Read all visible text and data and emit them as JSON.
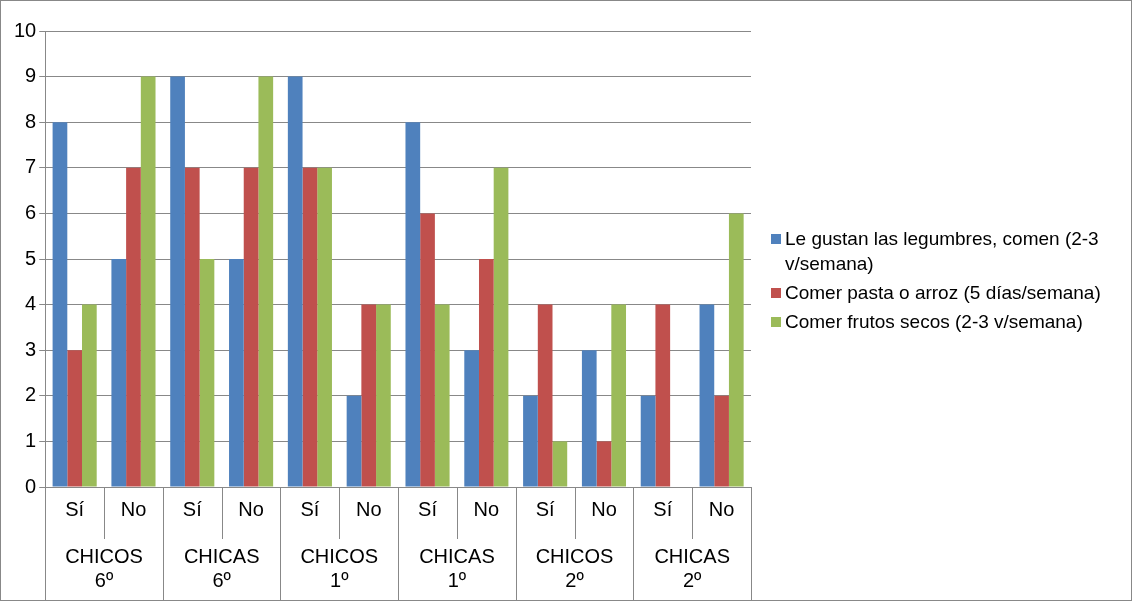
{
  "chart_data": {
    "type": "bar",
    "categories": [
      "Sí",
      "No",
      "Sí",
      "No",
      "Sí",
      "No",
      "Sí",
      "No",
      "Sí",
      "No",
      "Sí",
      "No"
    ],
    "annotations": [
      "CHICOS\n6º",
      "CHICAS\n6º",
      "CHICOS\n1º",
      "CHICAS\n1º",
      "CHICOS\n2º",
      "CHICAS\n2º"
    ],
    "series": [
      {
        "name": "Le gustan las legumbres, comen (2-3 v/semana)",
        "color": "#4f81bd",
        "values": [
          8,
          5,
          9,
          5,
          9,
          2,
          8,
          3,
          2,
          3,
          2,
          4
        ]
      },
      {
        "name": "Comer pasta o arroz (5 días/semana)",
        "color": "#c0504d",
        "values": [
          3,
          7,
          7,
          7,
          7,
          4,
          6,
          5,
          4,
          1,
          4,
          2
        ]
      },
      {
        "name": "Comer frutos secos (2-3 v/semana)",
        "color": "#9bbb59",
        "values": [
          4,
          9,
          5,
          9,
          7,
          4,
          4,
          7,
          1,
          4,
          0,
          6
        ]
      }
    ],
    "ylim": [
      0,
      10
    ],
    "yticks": [
      0,
      1,
      2,
      3,
      4,
      5,
      6,
      7,
      8,
      9,
      10
    ],
    "grid": "y",
    "legend": "right"
  }
}
